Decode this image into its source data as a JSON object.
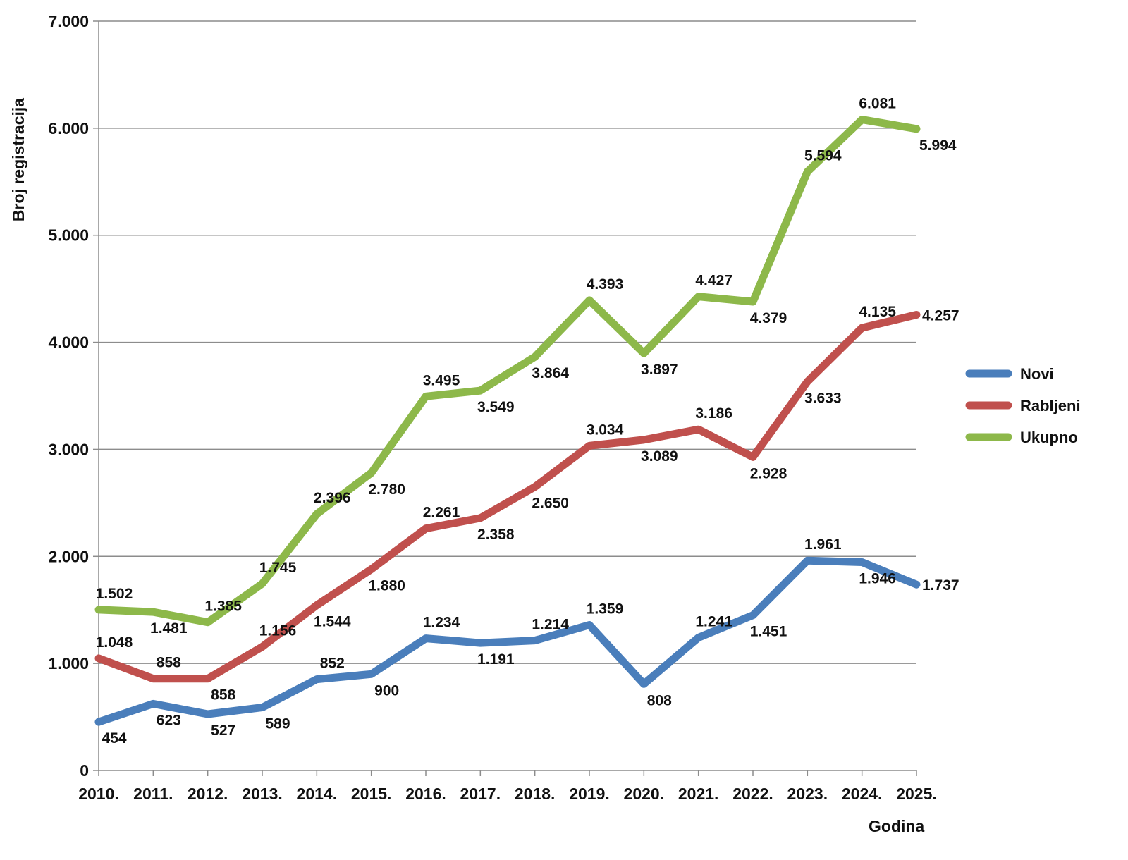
{
  "chart_data": {
    "type": "line",
    "title": "",
    "xlabel": "Godina",
    "ylabel": "Broj registracija",
    "ylim": [
      0,
      7000
    ],
    "yticks": [
      0,
      1000,
      2000,
      3000,
      4000,
      5000,
      6000,
      7000
    ],
    "ytick_labels": [
      "0",
      "1.000",
      "2.000",
      "3.000",
      "4.000",
      "5.000",
      "6.000",
      "7.000"
    ],
    "categories": [
      "2010.",
      "2011.",
      "2012.",
      "2013.",
      "2014.",
      "2015.",
      "2016.",
      "2017.",
      "2018.",
      "2019.",
      "2020.",
      "2021.",
      "2022.",
      "2023.",
      "2024.",
      "2025."
    ],
    "grid": true,
    "legend_position": "right",
    "series": [
      {
        "name": "Novi",
        "color": "#4a7ebb",
        "values": [
          454,
          623,
          527,
          589,
          852,
          900,
          1234,
          1191,
          1214,
          1359,
          808,
          1241,
          1451,
          1961,
          1946,
          1737
        ],
        "labels": [
          "454",
          "623",
          "527",
          "589",
          "852",
          "900",
          "1.234",
          "1.191",
          "1.214",
          "1.359",
          "808",
          "1.241",
          "1.451",
          "1.961",
          "1.946",
          "1.737"
        ]
      },
      {
        "name": "Rabljeni",
        "color": "#c0504d",
        "values": [
          1048,
          858,
          858,
          1156,
          1544,
          1880,
          2261,
          2358,
          2650,
          3034,
          3089,
          3186,
          2928,
          3633,
          4135,
          4257
        ],
        "labels": [
          "1.048",
          "858",
          "858",
          "1.156",
          "1.544",
          "1.880",
          "2.261",
          "2.358",
          "2.650",
          "3.034",
          "3.089",
          "3.186",
          "2.928",
          "3.633",
          "4.135",
          "4.257"
        ]
      },
      {
        "name": "Ukupno",
        "color": "#8db84a",
        "values": [
          1502,
          1481,
          1385,
          1745,
          2396,
          2780,
          3495,
          3549,
          3864,
          4393,
          3897,
          4427,
          4379,
          5594,
          6081,
          5994
        ],
        "labels": [
          "1.502",
          "1.481",
          "1.385",
          "1.745",
          "2.396",
          "2.780",
          "3.495",
          "3.549",
          "3.864",
          "4.393",
          "3.897",
          "4.427",
          "4.379",
          "5.594",
          "6.081",
          "5.994"
        ]
      }
    ]
  }
}
